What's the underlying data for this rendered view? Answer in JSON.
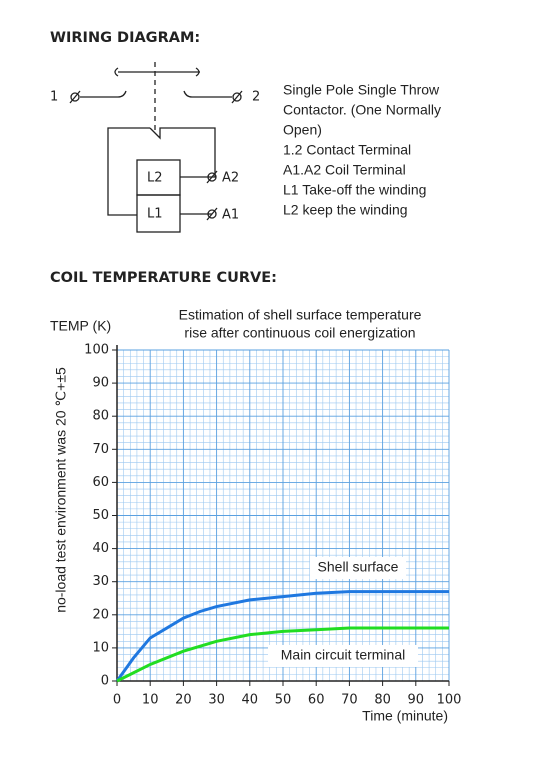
{
  "headings": {
    "wiring": "WIRING DIAGRAM:",
    "curve": "COIL TEMPERATURE CURVE:"
  },
  "wiring_diagram": {
    "terminal_1": "1",
    "terminal_2": "2",
    "coil_top": "L2",
    "coil_bottom": "L1",
    "terminal_a2": "A2",
    "terminal_a1": "A1",
    "description": [
      "Single Pole Single Throw",
      "Contactor. (One Normally",
      "Open)",
      "1.2 Contact Terminal",
      "A1.A2 Coil Terminal",
      "L1 Take-off the winding",
      "L2 keep the winding"
    ]
  },
  "chart_data": {
    "type": "line",
    "title": [
      "Estimation of shell surface temperature",
      "rise after continuous coil energization"
    ],
    "y_label": "TEMP (K)",
    "side_note": "no-load test environment was 20 ℃+±5",
    "x_label": "Time (minute)",
    "xlim": [
      0,
      100
    ],
    "ylim": [
      0,
      100
    ],
    "xticks": [
      0,
      10,
      20,
      30,
      40,
      50,
      60,
      70,
      80,
      90,
      100
    ],
    "yticks": [
      0,
      10,
      20,
      30,
      40,
      50,
      60,
      70,
      80,
      90,
      100
    ],
    "grid": true,
    "series": [
      {
        "name": "Shell surface",
        "color": "#1f78e0",
        "x": [
          0,
          5,
          10,
          15,
          20,
          25,
          30,
          40,
          50,
          60,
          70,
          80,
          90,
          100
        ],
        "values": [
          0,
          7,
          13,
          16,
          19,
          21,
          22.5,
          24.5,
          25.5,
          26.5,
          27,
          27,
          27,
          27
        ]
      },
      {
        "name": "Main circuit terminal",
        "color": "#22dd22",
        "x": [
          0,
          5,
          10,
          20,
          30,
          40,
          50,
          60,
          70,
          80,
          90,
          100
        ],
        "values": [
          0,
          2.5,
          5,
          9,
          12,
          14,
          15,
          15.5,
          16,
          16,
          16,
          16
        ]
      }
    ]
  }
}
